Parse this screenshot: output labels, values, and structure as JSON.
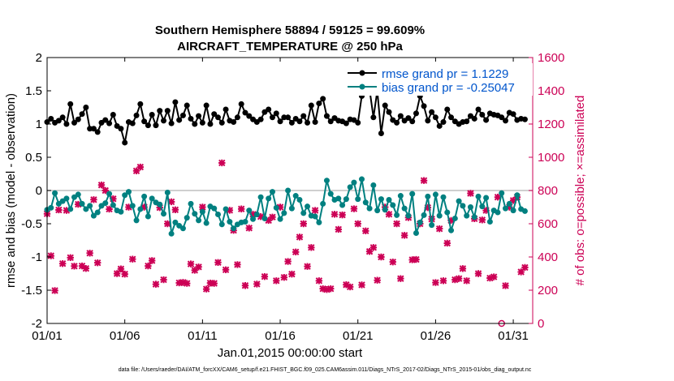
{
  "colors": {
    "rmse": "#000000",
    "bias": "#008080",
    "obs": "#cc0055",
    "zero_line": "#bfbfbf",
    "right_axis": "#cc0055",
    "legend_text": "#0055cc"
  },
  "chart_data": {
    "type": "line",
    "title_line1": "Southern Hemisphere 58894 / 59125 = 99.609%",
    "title_line2": "AIRCRAFT_TEMPERATURE @ 250 hPa",
    "xlabel": "Jan.01,2015 00:00:00 start",
    "ylabel_left": "rmse and bias (model - observation)",
    "ylabel_right": "# of obs: o=possible; ×=assimilated",
    "ylim_left": [
      -2,
      2
    ],
    "ylim_right": [
      0,
      1600
    ],
    "yticks_left": [
      "-2",
      "-1.5",
      "-1",
      "-0.5",
      "0",
      "0.5",
      "1",
      "1.5",
      "2"
    ],
    "yticks_right": [
      "0",
      "200",
      "400",
      "600",
      "800",
      "1000",
      "1200",
      "1400",
      "1600"
    ],
    "xlim": [
      0,
      31.25
    ],
    "xticks": [
      {
        "v": 0,
        "label": "01/01"
      },
      {
        "v": 5,
        "label": "01/06"
      },
      {
        "v": 10,
        "label": "01/11"
      },
      {
        "v": 15,
        "label": "01/16"
      },
      {
        "v": 20,
        "label": "01/21"
      },
      {
        "v": 25,
        "label": "01/26"
      },
      {
        "v": 30,
        "label": "01/31"
      }
    ],
    "legend": [
      {
        "series": "rmse",
        "label": "rmse grand pr = 1.1229"
      },
      {
        "series": "bias",
        "label": "bias grand pr = -0.25047"
      }
    ],
    "footer": "data file: /Users/raeder/DAI/ATM_forcXX/CAM6_setup/f.e21.FHIST_BGC.f09_025.CAM6assim.011/Diags_NTrS_2017-02/Diags_NTrS_2015-01/obs_diag_output.nc",
    "n_points": 124,
    "time_step_days": 0.25,
    "rmse": [
      1.03,
      1.08,
      1.02,
      1.05,
      1.1,
      1.0,
      1.3,
      1.02,
      1.07,
      1.15,
      1.25,
      0.93,
      0.93,
      0.88,
      1.02,
      1.06,
      1.01,
      1.14,
      0.97,
      0.93,
      0.72,
      1.03,
      1.01,
      1.13,
      1.3,
      1.04,
      0.98,
      1.14,
      0.98,
      1.2,
      1.05,
      1.2,
      1.01,
      1.33,
      1.06,
      1.13,
      1.28,
      1.08,
      1.0,
      1.12,
      1.02,
      1.28,
      1.0,
      1.15,
      1.1,
      1.02,
      1.22,
      1.05,
      1.03,
      1.1,
      1.3,
      1.17,
      1.12,
      1.07,
      1.03,
      1.07,
      1.18,
      1.22,
      1.1,
      1.16,
      1.04,
      1.1,
      1.1,
      1.02,
      1.08,
      1.04,
      1.12,
      1.02,
      1.28,
      1.03,
      1.31,
      1.38,
      1.12,
      1.04,
      1.09,
      1.05,
      1.04,
      1.01,
      1.07,
      1.06,
      1.02,
      1.42,
      1.48,
      1.52,
      1.1,
      1.5,
      0.86,
      1.28,
      1.18,
      1.06,
      1.02,
      1.12,
      1.05,
      1.09,
      1.04,
      1.16,
      1.42,
      1.27,
      1.05,
      1.18,
      1.1,
      0.97,
      1.03,
      1.22,
      1.1,
      1.04,
      1.0,
      1.03,
      1.04,
      1.12,
      1.08,
      1.22,
      1.14,
      1.06,
      1.16,
      1.14,
      1.13,
      1.1,
      1.05,
      1.17,
      1.15,
      1.06,
      1.08,
      1.07
    ],
    "bias": [
      -0.29,
      -0.26,
      -0.04,
      -0.2,
      -0.16,
      -0.12,
      -0.28,
      -0.1,
      -0.06,
      -0.2,
      -0.28,
      -0.23,
      -0.38,
      -0.33,
      -0.23,
      -0.19,
      -0.05,
      -0.22,
      -0.3,
      -0.32,
      -0.07,
      -0.02,
      -0.23,
      -0.45,
      -0.28,
      -0.09,
      -0.39,
      -0.12,
      -0.18,
      -0.21,
      -0.35,
      -0.03,
      -0.65,
      -0.48,
      -0.53,
      -0.57,
      -0.41,
      -0.2,
      -0.35,
      -0.45,
      -0.32,
      -0.49,
      -0.24,
      -0.27,
      -0.36,
      -0.51,
      -0.28,
      -0.47,
      -0.57,
      -0.51,
      -0.48,
      -0.47,
      -0.3,
      -0.43,
      -0.36,
      -0.1,
      -0.42,
      -0.12,
      -0.02,
      -0.26,
      -0.43,
      -0.34,
      0.0,
      -0.27,
      -0.08,
      -0.14,
      -0.34,
      -0.24,
      -0.38,
      -0.39,
      -0.48,
      -0.2,
      0.15,
      -0.05,
      -0.14,
      -0.12,
      -0.22,
      -0.13,
      0.05,
      0.12,
      -0.13,
      0.17,
      -0.18,
      -0.27,
      0.08,
      -0.3,
      -0.13,
      -0.29,
      -0.14,
      -0.22,
      -0.37,
      -0.08,
      -0.27,
      -0.38,
      -0.05,
      -0.64,
      -0.48,
      -0.37,
      -0.09,
      -0.52,
      -0.06,
      -0.38,
      -0.1,
      -0.33,
      -0.6,
      -0.42,
      -0.16,
      -0.23,
      -0.38,
      -0.25,
      -0.4,
      -0.09,
      -0.24,
      -0.11,
      -0.47,
      -0.3,
      -0.33,
      -0.04,
      -0.27,
      -0.2,
      -0.3,
      -0.07,
      -0.28,
      -0.31
    ],
    "obs_assimilated": [
      660,
      407,
      198,
      683,
      360,
      680,
      396,
      345,
      717,
      346,
      331,
      423,
      745,
      365,
      833,
      800,
      688,
      750,
      300,
      328,
      297,
      700,
      387,
      918,
      941,
      700,
      346,
      378,
      236,
      697,
      263,
      600,
      732,
      684,
      244,
      247,
      241,
      358,
      320,
      340,
      700,
      207,
      243,
      241,
      367,
      966,
      323,
      681,
      560,
      354,
      689,
      228,
      574,
      657,
      237,
      643,
      282,
      620,
      640,
      257,
      700,
      277,
      373,
      297,
      430,
      520,
      600,
      343,
      457,
      680,
      257,
      209,
      204,
      209,
      657,
      566,
      653,
      233,
      220,
      690,
      600,
      232,
      557,
      433,
      457,
      260,
      400,
      700,
      657,
      370,
      600,
      270,
      530,
      637,
      383,
      385,
      600,
      860,
      697,
      628,
      246,
      570,
      257,
      483,
      620,
      263,
      270,
      330,
      257,
      783,
      630,
      300,
      623,
      680,
      273,
      280,
      760,
      0,
      227,
      700,
      740,
      760,
      310,
      337
    ]
  }
}
